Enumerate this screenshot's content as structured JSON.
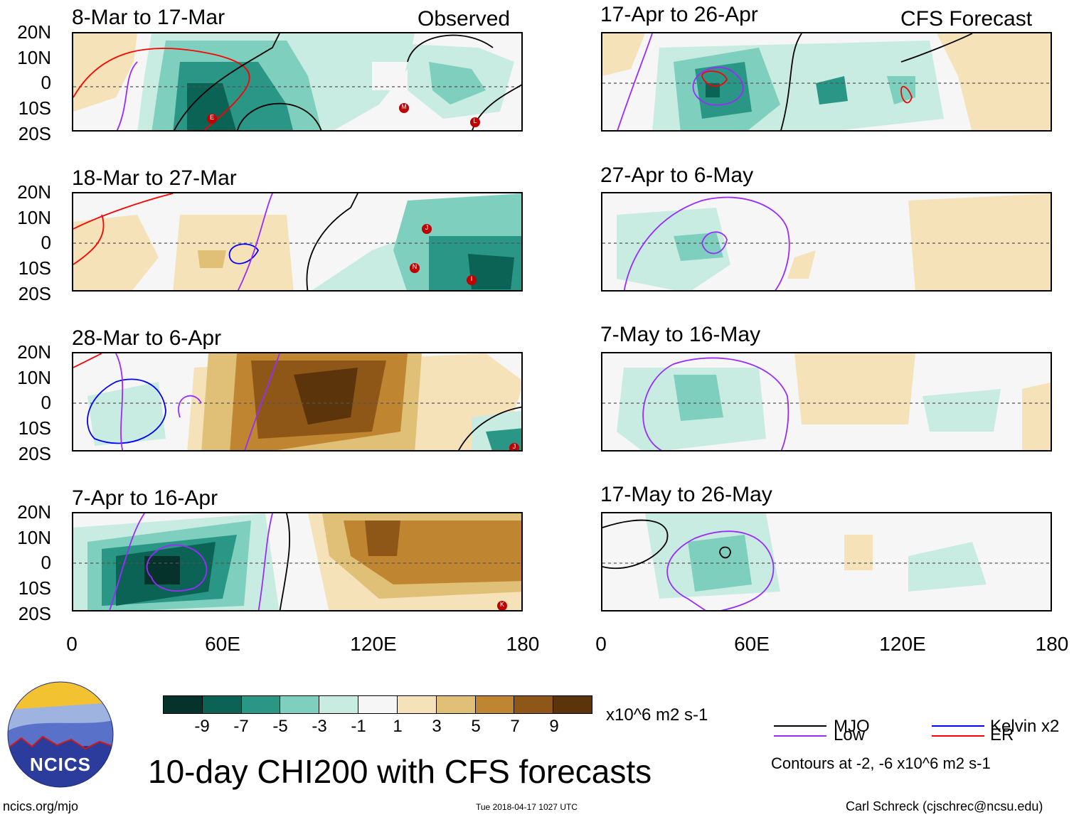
{
  "columns": {
    "left": {
      "label": "Observed"
    },
    "right": {
      "label": "CFS Forecast"
    }
  },
  "panels": [
    {
      "id": "obs1",
      "period": "8-Mar to 17-Mar"
    },
    {
      "id": "obs2",
      "period": "18-Mar to 27-Mar"
    },
    {
      "id": "obs3",
      "period": "28-Mar to 6-Apr"
    },
    {
      "id": "obs4",
      "period": "7-Apr to 16-Apr"
    },
    {
      "id": "fc1",
      "period": "17-Apr to 26-Apr"
    },
    {
      "id": "fc2",
      "period": "27-Apr to 6-May"
    },
    {
      "id": "fc3",
      "period": "7-May to 16-May"
    },
    {
      "id": "fc4",
      "period": "17-May to 26-May"
    }
  ],
  "axes": {
    "lat_labels": [
      "20N",
      "10N",
      "0",
      "10S",
      "20S"
    ],
    "lon_labels": [
      "0",
      "60E",
      "120E",
      "180"
    ]
  },
  "colorbar": {
    "ticks": [
      "-9",
      "-7",
      "-5",
      "-3",
      "-1",
      "1",
      "3",
      "5",
      "7",
      "9"
    ],
    "units": "x10^6 m2 s-1",
    "colors": [
      "#06322c",
      "#0b6355",
      "#2a9686",
      "#7ecfbd",
      "#c9ece2",
      "#f6f6f6",
      "#f5e2b8",
      "#e0bf76",
      "#c08531",
      "#8e5617",
      "#5b340b"
    ]
  },
  "contour_legend": {
    "items": [
      {
        "label": "MJO",
        "color": "#000000"
      },
      {
        "label": "Kelvin x2",
        "color": "#0000ff"
      },
      {
        "label": "Low",
        "color": "#9a2bff"
      },
      {
        "label": "ER",
        "color": "#ff0000"
      }
    ],
    "note": "Contours at -2, -6 x10^6 m2 s-1"
  },
  "storm_markers": {
    "obs1": [
      "E",
      "M",
      "L"
    ],
    "obs2": [
      "J",
      "N",
      "I"
    ],
    "obs3": [
      "J"
    ],
    "obs4": [
      "K"
    ]
  },
  "title": "10-day CHI200 with CFS forecasts",
  "logo": {
    "text": "NCICS"
  },
  "footer": {
    "url": "ncics.org/mjo",
    "timestamp": "Tue 2018-04-17 1027 UTC",
    "credit": "Carl Schreck (cjschrec@ncsu.edu)"
  }
}
